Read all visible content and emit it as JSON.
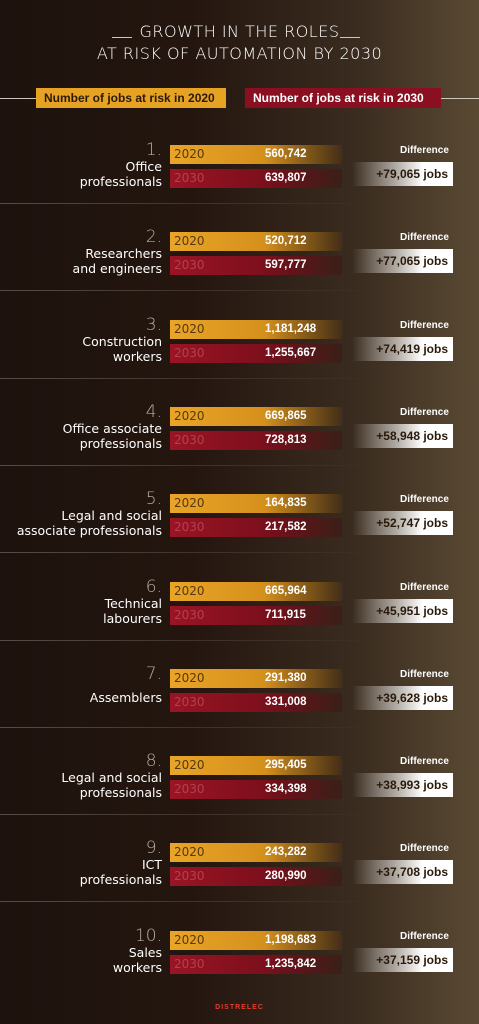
{
  "title_line1": "GROWTH IN THE ROLES",
  "title_line2": "AT RISK OF AUTOMATION BY 2030",
  "legend": {
    "y2020": "Number of jobs at risk in 2020",
    "y2030": "Number of jobs at risk in 2030"
  },
  "year_2020": "2020",
  "year_2030": "2030",
  "diff_label": "Difference",
  "brand": "DISTRELEC",
  "colors": {
    "bar2020": "#e6a323",
    "bar2030": "#8a1021"
  },
  "chart_data": {
    "type": "bar",
    "title": "GROWTH IN THE ROLES AT RISK OF AUTOMATION BY 2030",
    "series": [
      {
        "name": "Number of jobs at risk in 2020",
        "values": [
          560742,
          520712,
          1181248,
          669865,
          164835,
          665964,
          291380,
          295405,
          243282,
          1198683
        ]
      },
      {
        "name": "Number of jobs at risk in 2030",
        "values": [
          639807,
          597777,
          1255667,
          728813,
          217582,
          711915,
          331008,
          334398,
          280990,
          1235842
        ]
      }
    ],
    "rows": [
      {
        "rank": "1.",
        "label1": "Office",
        "label2": "professionals",
        "v2020": "560,742",
        "v2030": "639,807",
        "diff": "+79,065 jobs"
      },
      {
        "rank": "2.",
        "label1": "Researchers",
        "label2": "and engineers",
        "v2020": "520,712",
        "v2030": "597,777",
        "diff": "+77,065 jobs"
      },
      {
        "rank": "3.",
        "label1": "Construction",
        "label2": "workers",
        "v2020": "1,181,248",
        "v2030": "1,255,667",
        "diff": "+74,419 jobs"
      },
      {
        "rank": "4.",
        "label1": "Office associate",
        "label2": "professionals",
        "v2020": "669,865",
        "v2030": "728,813",
        "diff": "+58,948 jobs"
      },
      {
        "rank": "5.",
        "label1": "Legal and social",
        "label2": "associate professionals",
        "v2020": "164,835",
        "v2030": "217,582",
        "diff": "+52,747 jobs"
      },
      {
        "rank": "6.",
        "label1": "Technical",
        "label2": "labourers",
        "v2020": "665,964",
        "v2030": "711,915",
        "diff": "+45,951 jobs"
      },
      {
        "rank": "7.",
        "label1": "Assemblers",
        "label2": "",
        "v2020": "291,380",
        "v2030": "331,008",
        "diff": "+39,628 jobs"
      },
      {
        "rank": "8.",
        "label1": "Legal and social",
        "label2": "professionals",
        "v2020": "295,405",
        "v2030": "334,398",
        "diff": "+38,993 jobs"
      },
      {
        "rank": "9.",
        "label1": "ICT",
        "label2": "professionals",
        "v2020": "243,282",
        "v2030": "280,990",
        "diff": "+37,708 jobs"
      },
      {
        "rank": "10.",
        "label1": "Sales",
        "label2": "workers",
        "v2020": "1,198,683",
        "v2030": "1,235,842",
        "diff": "+37,159 jobs"
      }
    ]
  }
}
